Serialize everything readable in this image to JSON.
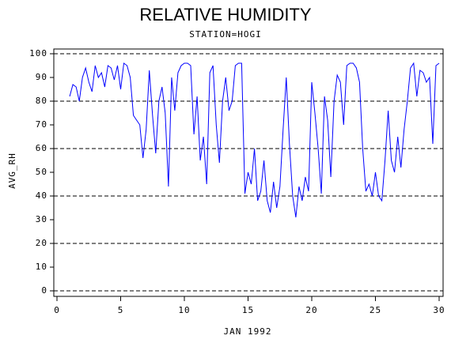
{
  "chart_data": {
    "type": "line",
    "title": "RELATIVE HUMIDITY",
    "subtitle": "STATION=HOGI",
    "x_label": "JAN 1992",
    "y_label": "AVG_RH",
    "xlim": [
      0,
      30
    ],
    "xticks": [
      0,
      5,
      10,
      15,
      20,
      25,
      30
    ],
    "ylim": [
      0,
      100
    ],
    "yticks": [
      0,
      10,
      20,
      30,
      40,
      50,
      60,
      70,
      80,
      90,
      100
    ],
    "grid_lines": [
      0,
      20,
      40,
      60,
      80,
      100
    ],
    "series": [
      {
        "color": "#0000ff",
        "x": [
          1,
          1.25,
          1.5,
          1.75,
          2,
          2.25,
          2.5,
          2.75,
          3,
          3.25,
          3.5,
          3.75,
          4,
          4.25,
          4.5,
          4.75,
          5,
          5.25,
          5.5,
          5.75,
          6,
          6.25,
          6.5,
          6.75,
          7,
          7.25,
          7.5,
          7.75,
          8,
          8.25,
          8.5,
          8.75,
          9,
          9.25,
          9.5,
          9.75,
          10,
          10.25,
          10.5,
          10.75,
          11,
          11.25,
          11.5,
          11.75,
          12,
          12.25,
          12.5,
          12.75,
          13,
          13.25,
          13.5,
          13.75,
          14,
          14.25,
          14.5,
          14.75,
          15,
          15.25,
          15.5,
          15.75,
          16,
          16.25,
          16.5,
          16.75,
          17,
          17.25,
          17.5,
          17.75,
          18,
          18.25,
          18.5,
          18.75,
          19,
          19.25,
          19.5,
          19.75,
          20,
          20.25,
          20.5,
          20.75,
          21,
          21.25,
          21.5,
          21.75,
          22,
          22.25,
          22.5,
          22.75,
          23,
          23.25,
          23.5,
          23.75,
          24,
          24.25,
          24.5,
          24.75,
          25,
          25.25,
          25.5,
          25.75,
          26,
          26.25,
          26.5,
          26.75,
          27,
          27.25,
          27.5,
          27.75,
          28,
          28.25,
          28.5,
          28.75,
          29,
          29.25,
          29.5,
          29.75,
          30
        ],
        "values": [
          82,
          87,
          86,
          80,
          90,
          94,
          88,
          84,
          95,
          90,
          92,
          86,
          95,
          94,
          89,
          95,
          85,
          96,
          95,
          90,
          74,
          72,
          70,
          56,
          68,
          93,
          74,
          58,
          80,
          86,
          75,
          44,
          90,
          76,
          92,
          95,
          96,
          96,
          95,
          66,
          82,
          55,
          65,
          45,
          92,
          95,
          70,
          54,
          80,
          90,
          76,
          80,
          95,
          96,
          96,
          41,
          50,
          45,
          60,
          38,
          42,
          55,
          38,
          33,
          46,
          35,
          44,
          68,
          90,
          62,
          40,
          31,
          44,
          38,
          48,
          42,
          88,
          75,
          60,
          41,
          82,
          72,
          48,
          80,
          91,
          88,
          70,
          95,
          96,
          96,
          94,
          88,
          60,
          42,
          45,
          40,
          50,
          40,
          38,
          55,
          76,
          55,
          50,
          65,
          52,
          68,
          80,
          94,
          96,
          82,
          93,
          92,
          88,
          90,
          62,
          95,
          96
        ]
      }
    ]
  }
}
